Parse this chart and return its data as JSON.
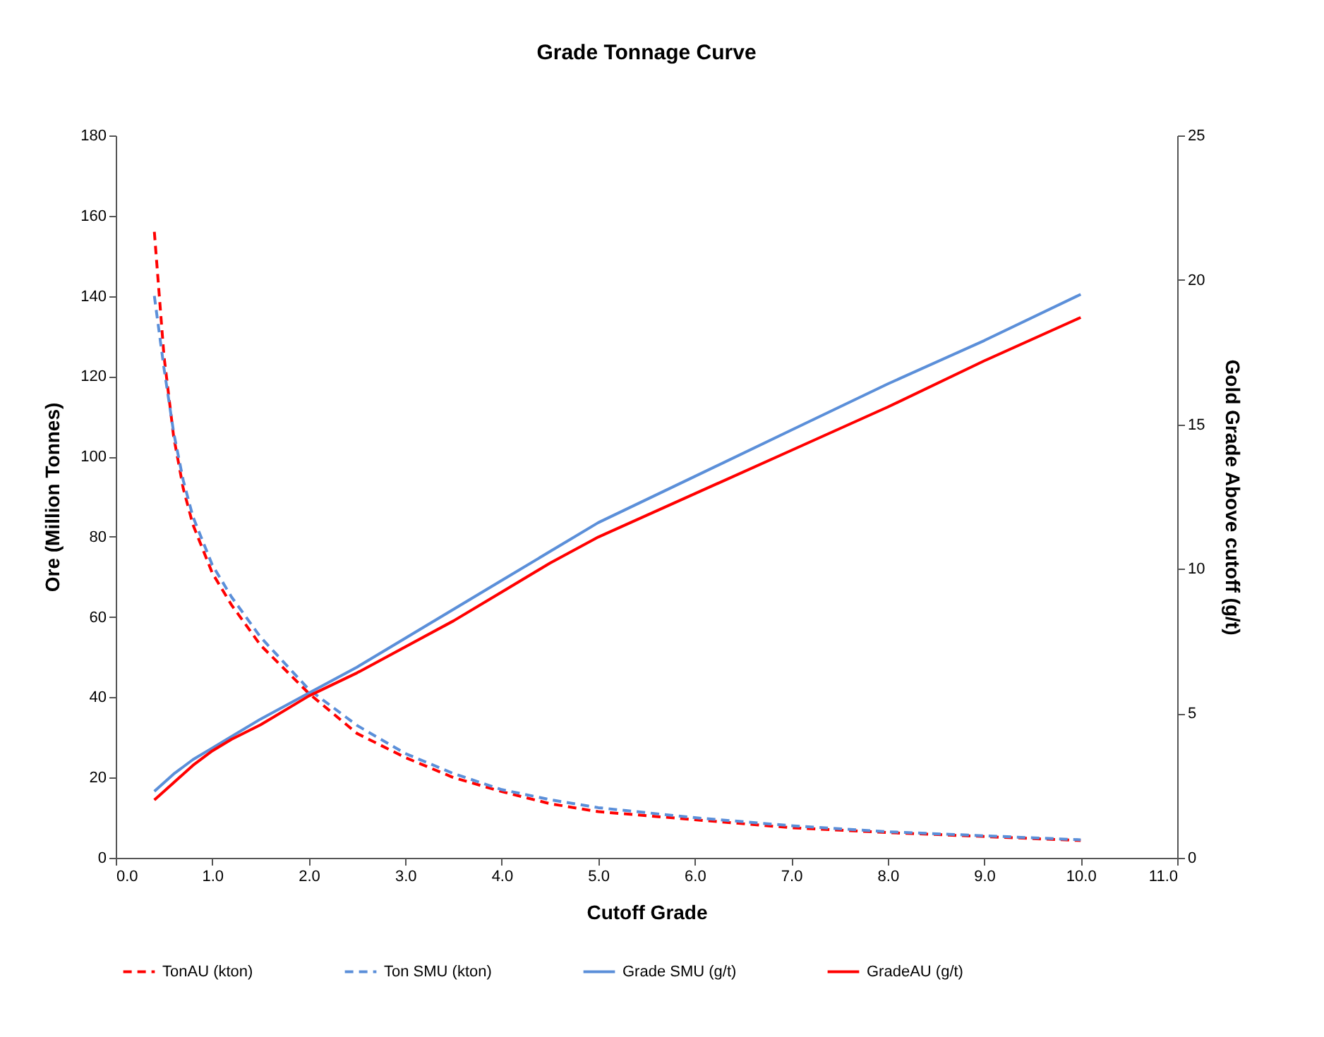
{
  "chart_data": {
    "type": "line",
    "title": "Grade  Tonnage  Curve",
    "xlabel": "Cutoff Grade",
    "ylabel": "Ore (Million Tonnes)",
    "y2label": "Gold Grade Above cutoff (g/t)",
    "x": [
      0.4,
      0.5,
      0.6,
      0.7,
      0.8,
      1.0,
      1.2,
      1.5,
      2.0,
      2.5,
      3.0,
      3.5,
      4.0,
      4.5,
      5.0,
      6.0,
      7.0,
      8.0,
      9.0,
      10.0
    ],
    "series": [
      {
        "name": "TonAU (kton)",
        "color": "#ff0000",
        "line_style": "dashed",
        "axis": "y",
        "values": [
          156,
          125,
          105,
          92,
          83,
          71,
          63,
          53,
          41,
          31,
          25,
          20,
          16.5,
          13.5,
          11.5,
          9.5,
          7.5,
          6.3,
          5.3,
          4.3
        ]
      },
      {
        "name": "Ton SMU (kton)",
        "color": "#5b8fd9",
        "line_style": "dashed",
        "axis": "y",
        "values": [
          140,
          122,
          106,
          94,
          85,
          73,
          65,
          55,
          42,
          33,
          26,
          21,
          17,
          14.5,
          12.5,
          10,
          8,
          6.5,
          5.5,
          4.5
        ]
      },
      {
        "name": "Grade SMU (g/t)",
        "color": "#5b8fd9",
        "line_style": "solid",
        "axis": "y2",
        "values": [
          2.3,
          2.6,
          2.9,
          3.15,
          3.4,
          3.8,
          4.2,
          4.8,
          5.7,
          6.6,
          7.6,
          8.6,
          9.6,
          10.6,
          11.6,
          13.2,
          14.8,
          16.4,
          17.9,
          19.5
        ]
      },
      {
        "name": "GradeAU (g/t)",
        "color": "#ff0000",
        "line_style": "solid",
        "axis": "y2",
        "values": [
          2.0,
          2.3,
          2.6,
          2.9,
          3.2,
          3.7,
          4.1,
          4.6,
          5.6,
          6.4,
          7.3,
          8.2,
          9.2,
          10.2,
          11.1,
          12.6,
          14.1,
          15.6,
          17.2,
          18.7
        ]
      }
    ],
    "xlim": [
      0,
      11
    ],
    "xticks": [
      {
        "value": 0,
        "label": "0.0"
      },
      {
        "value": 1,
        "label": "1.0"
      },
      {
        "value": 2,
        "label": "2.0"
      },
      {
        "value": 3,
        "label": "3.0"
      },
      {
        "value": 4,
        "label": "4.0"
      },
      {
        "value": 5,
        "label": "5.0"
      },
      {
        "value": 6,
        "label": "6.0"
      },
      {
        "value": 7,
        "label": "7.0"
      },
      {
        "value": 8,
        "label": "8.0"
      },
      {
        "value": 9,
        "label": "9.0"
      },
      {
        "value": 10,
        "label": "10.0"
      },
      {
        "value": 11,
        "label": "11.0"
      }
    ],
    "ylim": [
      0,
      180
    ],
    "yticks": [
      0,
      20,
      40,
      60,
      80,
      100,
      120,
      140,
      160,
      180
    ],
    "y2lim": [
      0,
      25
    ],
    "y2ticks": [
      0,
      5,
      10,
      15,
      20,
      25
    ],
    "legend": "bottom",
    "grid": false
  }
}
